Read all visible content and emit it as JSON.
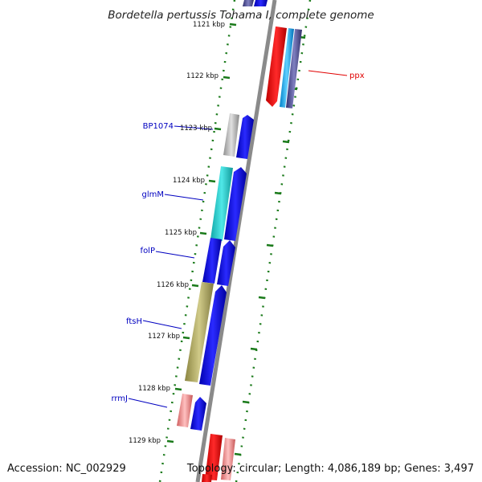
{
  "title": "Bordetella pertussis Tohama I, complete genome",
  "accession": "Accession: NC_002929",
  "topology": "Topology: circular; Length: 4,086,189 bp; Genes: 3,497",
  "ticks": [
    {
      "label": "1121 kbp"
    },
    {
      "label": "1122 kbp"
    },
    {
      "label": "1123 kbp"
    },
    {
      "label": "1124 kbp"
    },
    {
      "label": "1125 kbp"
    },
    {
      "label": "1126 kbp"
    },
    {
      "label": "1127 kbp"
    },
    {
      "label": "1128 kbp"
    },
    {
      "label": "1129 kbp"
    }
  ],
  "gene_labels": [
    {
      "id": "ppx",
      "label": "ppx",
      "color": "#e00000"
    },
    {
      "id": "bp1074",
      "label": "BP1074",
      "color": "#0000c0"
    },
    {
      "id": "glmm",
      "label": "glmM",
      "color": "#0000c0"
    },
    {
      "id": "folp",
      "label": "folP",
      "color": "#0000c0"
    },
    {
      "id": "ftsh",
      "label": "ftsH",
      "color": "#0000c0"
    },
    {
      "id": "rrmj",
      "label": "rrmJ",
      "color": "#0000c0"
    }
  ],
  "colors": {
    "backbone": "#8a8a8a",
    "tick": "#1a7a1a",
    "blue": "#0000ee",
    "red": "#ee0000",
    "cyan": "#20c8c8",
    "olive": "#b0aa60",
    "gray": "#b0b0b0",
    "pink": "#f08080",
    "navy": "#50508c",
    "skyblue": "#20a0e0"
  }
}
